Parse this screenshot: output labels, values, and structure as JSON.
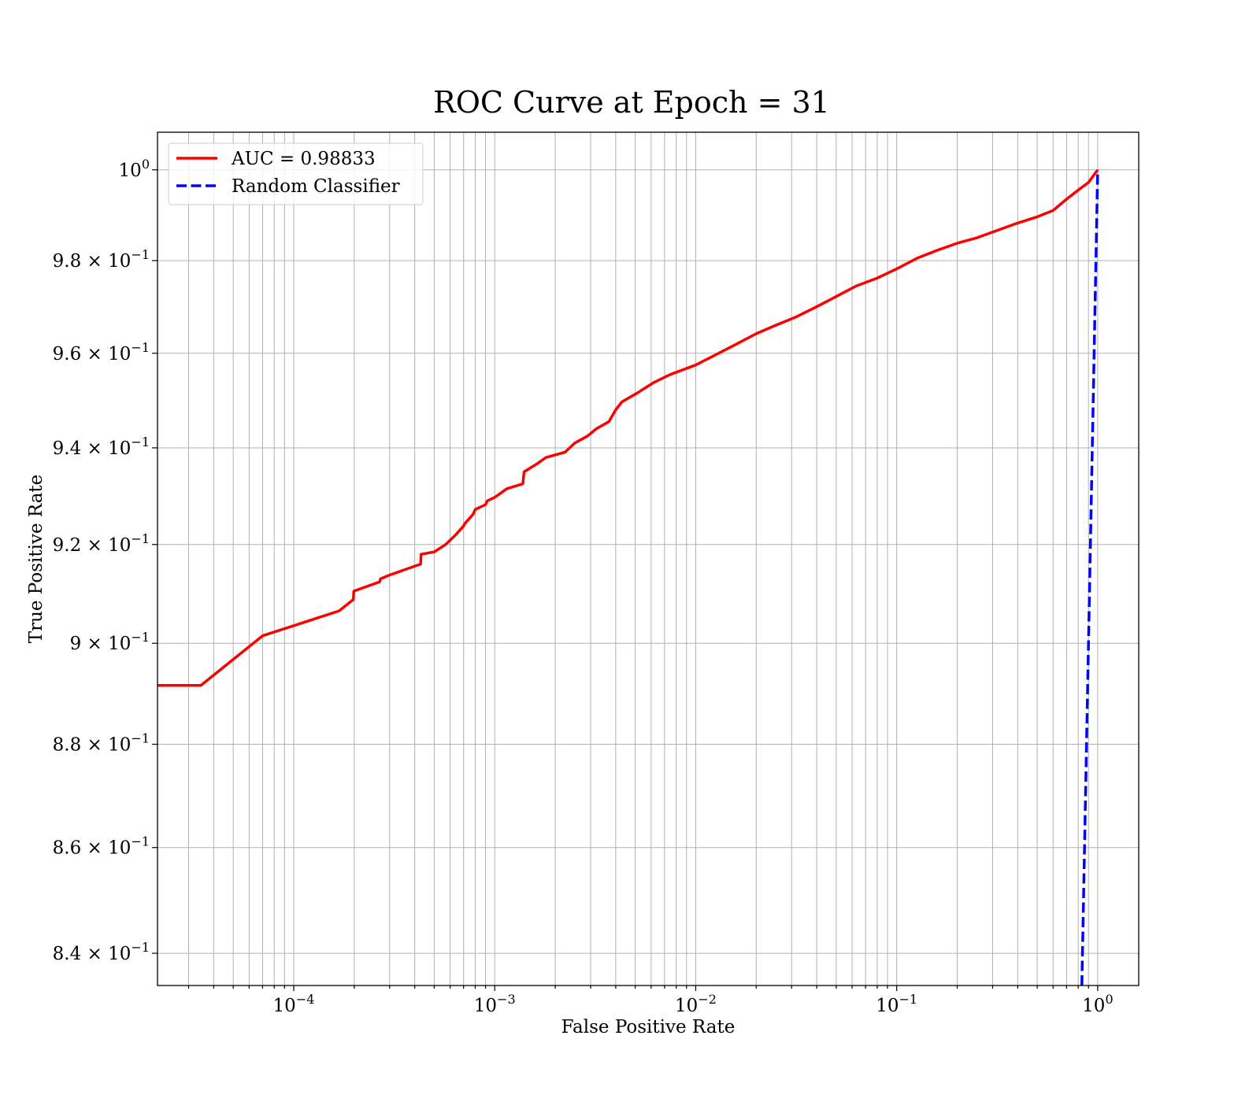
{
  "chart_data": {
    "type": "line",
    "title": "ROC Curve at Epoch = 31",
    "xlabel": "False Positive Rate",
    "ylabel": "True Positive Rate",
    "x_scale": "log",
    "y_scale": "log",
    "xlim": [
      2.1e-05,
      1.6
    ],
    "ylim": [
      0.834,
      1.0084
    ],
    "grid": true,
    "legend_position": "top-left",
    "x_ticks": [
      {
        "value": 0.0001,
        "base": "10",
        "exp": "−4"
      },
      {
        "value": 0.001,
        "base": "10",
        "exp": "−3"
      },
      {
        "value": 0.01,
        "base": "10",
        "exp": "−2"
      },
      {
        "value": 0.1,
        "base": "10",
        "exp": "−1"
      },
      {
        "value": 1,
        "base": "10",
        "exp": "0"
      }
    ],
    "y_ticks": [
      {
        "value": 0.84,
        "mant": "8.4 × 10",
        "exp": "−1"
      },
      {
        "value": 0.86,
        "mant": "8.6 × 10",
        "exp": "−1"
      },
      {
        "value": 0.88,
        "mant": "8.8 × 10",
        "exp": "−1"
      },
      {
        "value": 0.9,
        "mant": "9 × 10",
        "exp": "−1"
      },
      {
        "value": 0.92,
        "mant": "9.2 × 10",
        "exp": "−1"
      },
      {
        "value": 0.94,
        "mant": "9.4 × 10",
        "exp": "−1"
      },
      {
        "value": 0.96,
        "mant": "9.6 × 10",
        "exp": "−1"
      },
      {
        "value": 0.98,
        "mant": "9.8 × 10",
        "exp": "−1"
      },
      {
        "value": 1.0,
        "mant": "10",
        "exp": "0"
      }
    ],
    "series": [
      {
        "name": "AUC = 0.98833",
        "color": "#ff0000",
        "style": "solid",
        "x": [
          2.1e-05,
          3.45e-05,
          7e-05,
          0.000168,
          0.000198,
          0.000199,
          0.000268,
          0.00027,
          0.000301,
          0.000428,
          0.00043,
          0.000501,
          0.00057,
          0.00064,
          0.0007,
          0.00071,
          0.00078,
          0.0008,
          0.0009,
          0.00092,
          0.001,
          0.00115,
          0.00138,
          0.0014,
          0.0016,
          0.0018,
          0.00224,
          0.0025,
          0.0029,
          0.0032,
          0.0037,
          0.004,
          0.0043,
          0.0051,
          0.0062,
          0.0075,
          0.01,
          0.013,
          0.016,
          0.02,
          0.025,
          0.0316,
          0.04,
          0.05,
          0.063,
          0.08,
          0.1,
          0.126,
          0.158,
          0.2,
          0.251,
          0.316,
          0.398,
          0.501,
          0.6,
          0.7,
          0.8,
          0.9,
          1.0
        ],
        "y": [
          0.8916,
          0.8916,
          0.9015,
          0.9065,
          0.9088,
          0.9105,
          0.9124,
          0.913,
          0.9138,
          0.916,
          0.918,
          0.9185,
          0.92,
          0.922,
          0.9238,
          0.9243,
          0.9262,
          0.9272,
          0.9282,
          0.929,
          0.9297,
          0.9315,
          0.9325,
          0.935,
          0.9365,
          0.938,
          0.9391,
          0.941,
          0.9425,
          0.944,
          0.9455,
          0.948,
          0.9497,
          0.9515,
          0.9538,
          0.9555,
          0.9575,
          0.96,
          0.962,
          0.9642,
          0.966,
          0.9678,
          0.97,
          0.9722,
          0.9745,
          0.9762,
          0.9782,
          0.9805,
          0.9822,
          0.9838,
          0.985,
          0.9866,
          0.9882,
          0.9896,
          0.991,
          0.9935,
          0.9955,
          0.9972,
          1.0
        ]
      },
      {
        "name": "Random Classifier",
        "color": "#0000ff",
        "style": "dashed",
        "x": [
          0.834,
          1.0
        ],
        "y": [
          0.834,
          1.0
        ]
      }
    ]
  }
}
